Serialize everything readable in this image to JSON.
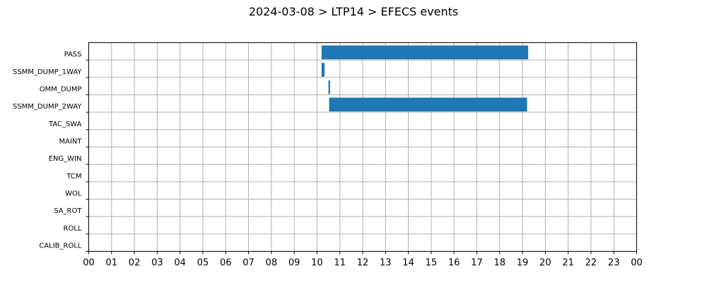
{
  "chart_data": {
    "type": "bar",
    "orientation": "horizontal-gantt",
    "title": "2024-03-08 > LTP14 > EFECS events",
    "xlabel": "",
    "ylabel": "",
    "xlim": [
      0,
      24
    ],
    "x_ticks": [
      "00",
      "01",
      "02",
      "03",
      "04",
      "05",
      "06",
      "07",
      "08",
      "09",
      "10",
      "11",
      "12",
      "13",
      "14",
      "15",
      "16",
      "17",
      "18",
      "19",
      "20",
      "21",
      "22",
      "23",
      "00"
    ],
    "categories": [
      "PASS",
      "SSMM_DUMP_1WAY",
      "OMM_DUMP",
      "SSMM_DUMP_2WAY",
      "TAC_SWA",
      "MAINT",
      "ENG_WIN",
      "TCM",
      "WOL",
      "SA_ROT",
      "ROLL",
      "CALIB_ROLL"
    ],
    "events": [
      {
        "category": "PASS",
        "start": 10.2,
        "end": 19.25
      },
      {
        "category": "SSMM_DUMP_1WAY",
        "start": 10.2,
        "end": 10.33
      },
      {
        "category": "OMM_DUMP",
        "start": 10.5,
        "end": 10.57
      },
      {
        "category": "SSMM_DUMP_2WAY",
        "start": 10.53,
        "end": 19.2
      }
    ],
    "grid": true,
    "bar_color": "#1f77b4"
  }
}
